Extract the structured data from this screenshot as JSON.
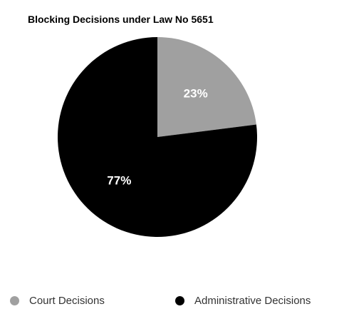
{
  "chart_data": {
    "type": "pie",
    "title": "Blocking Decisions under Law No 5651",
    "slices": [
      {
        "label": "Court Decisions",
        "value": 23,
        "display": "23%",
        "color": "#a0a0a0"
      },
      {
        "label": "Administrative Decisions",
        "value": 77,
        "display": "77%",
        "color": "#000000"
      }
    ],
    "legend_position": "bottom"
  }
}
